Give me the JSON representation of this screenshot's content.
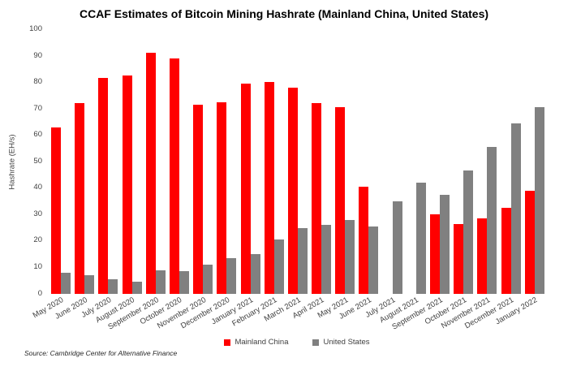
{
  "chart_data": {
    "type": "bar",
    "title": "CCAF Estimates of Bitcoin Mining Hashrate (Mainland China, United States)",
    "ylabel": "Hashrate (EH/s)",
    "ylim": [
      0,
      100
    ],
    "yticks": [
      0,
      10,
      20,
      30,
      40,
      50,
      60,
      70,
      80,
      90,
      100
    ],
    "grid": false,
    "legend_position": "bottom",
    "categories": [
      "May 2020",
      "June 2020",
      "July 2020",
      "August 2020",
      "September 2020",
      "October 2020",
      "November 2020",
      "December 2020",
      "January 2021",
      "February 2021",
      "March 2021",
      "April 2021",
      "May 2021",
      "June 2021",
      "July 2021",
      "August 2021",
      "September 2021",
      "October 2021",
      "November 2021",
      "December 2021",
      "January 2022"
    ],
    "series": [
      {
        "name": "Mainland China",
        "color": "#FF0000",
        "values": [
          63,
          72,
          81.5,
          82.5,
          91,
          89,
          71.5,
          72.5,
          79.5,
          80,
          78,
          72,
          70.5,
          40.5,
          0,
          0,
          30,
          26.5,
          28.5,
          32.5,
          39
        ]
      },
      {
        "name": "United States",
        "color": "#808080",
        "values": [
          8,
          7,
          5.5,
          4.5,
          9,
          8.5,
          11,
          13.5,
          15,
          20.5,
          25,
          26,
          28,
          25.5,
          35,
          42,
          37.5,
          46.5,
          55.5,
          64.5,
          70.5
        ]
      }
    ],
    "source": "Source: Cambridge Center for Alternative Finance"
  }
}
